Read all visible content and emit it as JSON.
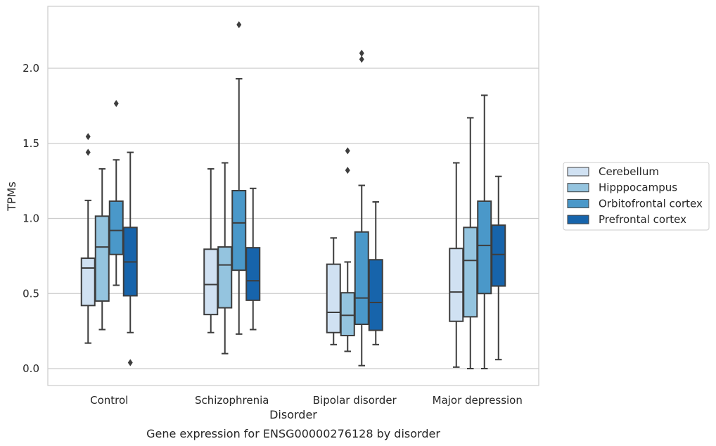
{
  "chart_data": {
    "type": "box",
    "title": "",
    "caption": "Gene expression for ENSG00000276128 by disorder",
    "xlabel": "Disorder",
    "ylabel": "TPMs",
    "ylim": [
      -0.11,
      2.42
    ],
    "yticks": [
      "0.0",
      "0.5",
      "1.0",
      "1.5",
      "2.0"
    ],
    "categories": [
      "Control",
      "Schizophrenia",
      "Bipolar disorder",
      "Major depression"
    ],
    "grid": "horizontal",
    "legend_position": "right",
    "series": [
      {
        "name": "Cerebellum",
        "color": "#d0e1f2",
        "boxes": [
          {
            "whisker_low": 0.17,
            "q1": 0.42,
            "median": 0.67,
            "q3": 0.735,
            "whisker_high": 1.12,
            "outliers": [
              1.44,
              1.545
            ]
          },
          {
            "whisker_low": 0.24,
            "q1": 0.36,
            "median": 0.56,
            "q3": 0.795,
            "whisker_high": 1.33,
            "outliers": []
          },
          {
            "whisker_low": 0.16,
            "q1": 0.24,
            "median": 0.375,
            "q3": 0.695,
            "whisker_high": 0.87,
            "outliers": []
          },
          {
            "whisker_low": 0.01,
            "q1": 0.315,
            "median": 0.51,
            "q3": 0.8,
            "whisker_high": 1.37,
            "outliers": []
          }
        ]
      },
      {
        "name": "Hipppocampus",
        "color": "#94c4df",
        "boxes": [
          {
            "whisker_low": 0.26,
            "q1": 0.45,
            "median": 0.81,
            "q3": 1.015,
            "whisker_high": 1.33,
            "outliers": []
          },
          {
            "whisker_low": 0.1,
            "q1": 0.405,
            "median": 0.69,
            "q3": 0.81,
            "whisker_high": 1.37,
            "outliers": []
          },
          {
            "whisker_low": 0.115,
            "q1": 0.22,
            "median": 0.355,
            "q3": 0.505,
            "whisker_high": 0.71,
            "outliers": [
              1.32,
              1.45
            ]
          },
          {
            "whisker_low": 0.0,
            "q1": 0.345,
            "median": 0.72,
            "q3": 0.94,
            "whisker_high": 1.67,
            "outliers": []
          }
        ]
      },
      {
        "name": "Orbitofrontal cortex",
        "color": "#4a98c9",
        "boxes": [
          {
            "whisker_low": 0.555,
            "q1": 0.76,
            "median": 0.92,
            "q3": 1.115,
            "whisker_high": 1.39,
            "outliers": [
              1.765
            ]
          },
          {
            "whisker_low": 0.23,
            "q1": 0.655,
            "median": 0.97,
            "q3": 1.185,
            "whisker_high": 1.93,
            "outliers": [
              2.29
            ]
          },
          {
            "whisker_low": 0.02,
            "q1": 0.295,
            "median": 0.47,
            "q3": 0.91,
            "whisker_high": 1.22,
            "outliers": [
              2.06,
              2.1
            ]
          },
          {
            "whisker_low": 0.0,
            "q1": 0.5,
            "median": 0.82,
            "q3": 1.115,
            "whisker_high": 1.82,
            "outliers": []
          }
        ]
      },
      {
        "name": "Prefrontal cortex",
        "color": "#1764ab",
        "boxes": [
          {
            "whisker_low": 0.24,
            "q1": 0.485,
            "median": 0.71,
            "q3": 0.94,
            "whisker_high": 1.44,
            "outliers": [
              0.04
            ]
          },
          {
            "whisker_low": 0.26,
            "q1": 0.455,
            "median": 0.585,
            "q3": 0.805,
            "whisker_high": 1.2,
            "outliers": []
          },
          {
            "whisker_low": 0.16,
            "q1": 0.255,
            "median": 0.44,
            "q3": 0.725,
            "whisker_high": 1.11,
            "outliers": []
          },
          {
            "whisker_low": 0.06,
            "q1": 0.55,
            "median": 0.76,
            "q3": 0.955,
            "whisker_high": 1.28,
            "outliers": []
          }
        ]
      }
    ]
  }
}
